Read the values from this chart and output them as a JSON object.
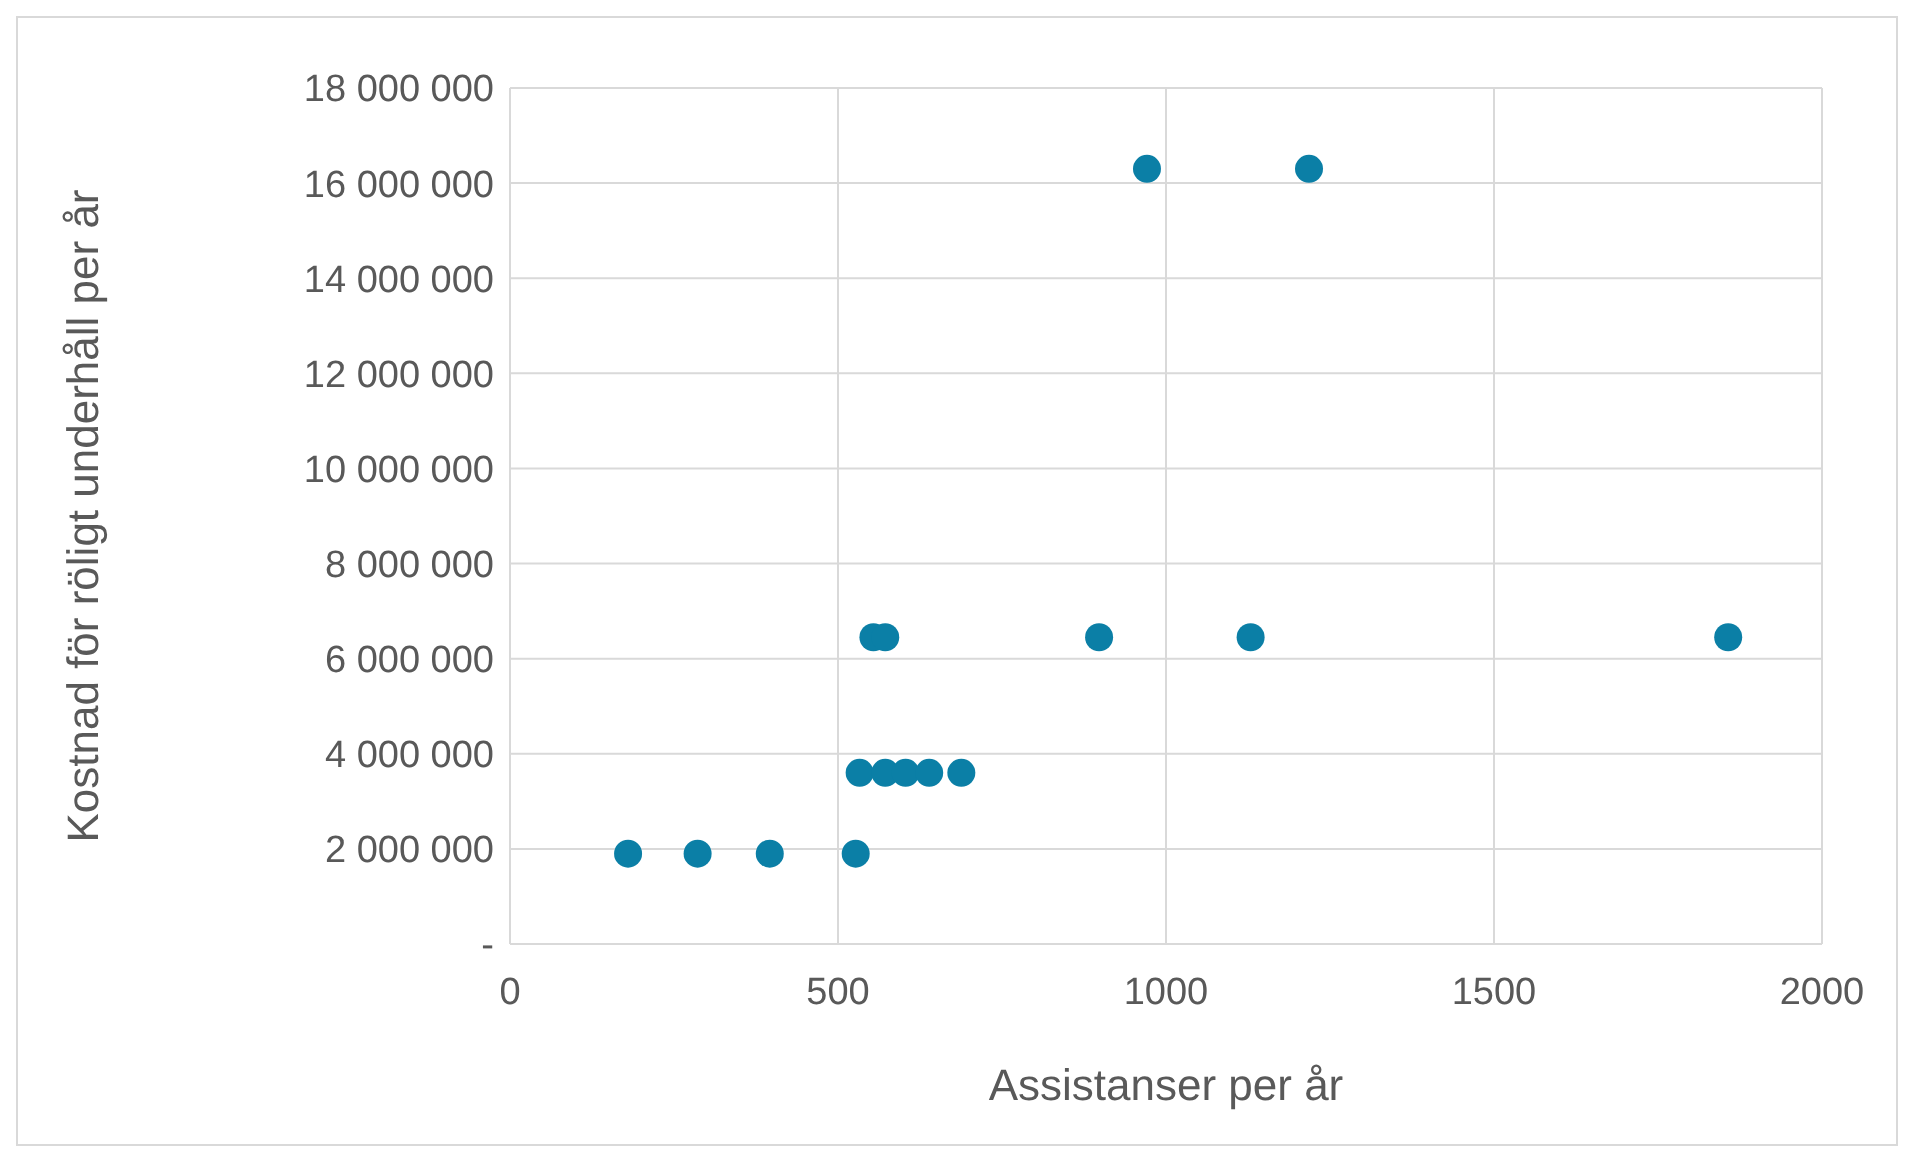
{
  "chart_data": {
    "type": "scatter",
    "xlabel": "Assistanser per år",
    "ylabel": "Kostnad för röligt underhåll per år",
    "x": [
      180,
      286,
      396,
      527,
      533,
      572,
      603,
      639,
      688,
      554,
      572,
      898,
      1129,
      1857,
      971,
      1218
    ],
    "series": [
      {
        "color": "#0b7fa6",
        "values": [
          1900000,
          1900000,
          1900000,
          1900000,
          3600000,
          3600000,
          3600000,
          3600000,
          3600000,
          6450000,
          6450000,
          6450000,
          6450000,
          6450000,
          16300000,
          16300000
        ]
      }
    ],
    "xlim": [
      0,
      2000
    ],
    "xticks": [
      0,
      500,
      1000,
      1500,
      2000
    ],
    "ylim": [
      0,
      18000000
    ],
    "yticks": [
      {
        "value": 0,
        "label": "-"
      },
      {
        "value": 2000000,
        "label": "2 000 000"
      },
      {
        "value": 4000000,
        "label": "4 000 000"
      },
      {
        "value": 6000000,
        "label": "6 000 000"
      },
      {
        "value": 8000000,
        "label": "8 000 000"
      },
      {
        "value": 10000000,
        "label": "10 000 000"
      },
      {
        "value": 12000000,
        "label": "12 000 000"
      },
      {
        "value": 14000000,
        "label": "14 000 000"
      },
      {
        "value": 16000000,
        "label": "16 000 000"
      },
      {
        "value": 18000000,
        "label": "18 000 000"
      }
    ],
    "grid": true,
    "marker": "circle",
    "legend": false
  }
}
